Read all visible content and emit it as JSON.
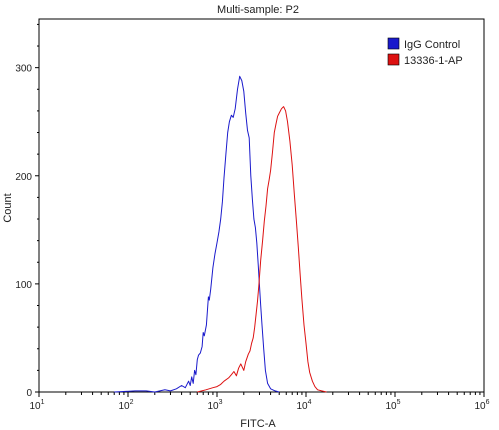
{
  "chart_data": {
    "type": "line",
    "title": "Multi-sample: P2",
    "xlabel": "FITC-A",
    "ylabel": "Count",
    "x_scale": "log",
    "xlim": [
      10,
      1000000
    ],
    "ylim": [
      0,
      345
    ],
    "y_ticks": [
      0,
      100,
      200,
      300
    ],
    "x_ticks": [
      {
        "value": 10,
        "base": "10",
        "exp": "1"
      },
      {
        "value": 100,
        "base": "10",
        "exp": "2"
      },
      {
        "value": 1000,
        "base": "10",
        "exp": "3"
      },
      {
        "value": 10000,
        "base": "10",
        "exp": "4"
      },
      {
        "value": 100000,
        "base": "10",
        "exp": "5"
      },
      {
        "value": 1000000,
        "base": "10",
        "exp": "6"
      }
    ],
    "legend_position": "top-right",
    "series": [
      {
        "name": "IgG Control",
        "color": "#1a1acc",
        "points": [
          [
            70,
            0
          ],
          [
            120,
            1
          ],
          [
            160,
            1
          ],
          [
            200,
            0
          ],
          [
            260,
            2
          ],
          [
            300,
            1
          ],
          [
            350,
            3
          ],
          [
            400,
            6
          ],
          [
            440,
            4
          ],
          [
            480,
            10
          ],
          [
            500,
            6
          ],
          [
            520,
            14
          ],
          [
            540,
            8
          ],
          [
            560,
            20
          ],
          [
            580,
            16
          ],
          [
            600,
            30
          ],
          [
            620,
            34
          ],
          [
            650,
            36
          ],
          [
            680,
            42
          ],
          [
            700,
            55
          ],
          [
            720,
            52
          ],
          [
            760,
            62
          ],
          [
            800,
            88
          ],
          [
            820,
            85
          ],
          [
            850,
            95
          ],
          [
            900,
            115
          ],
          [
            950,
            128
          ],
          [
            1000,
            138
          ],
          [
            1050,
            148
          ],
          [
            1100,
            160
          ],
          [
            1150,
            176
          ],
          [
            1200,
            198
          ],
          [
            1260,
            220
          ],
          [
            1320,
            240
          ],
          [
            1380,
            250
          ],
          [
            1450,
            256
          ],
          [
            1520,
            254
          ],
          [
            1600,
            262
          ],
          [
            1700,
            280
          ],
          [
            1800,
            292
          ],
          [
            1900,
            288
          ],
          [
            2000,
            278
          ],
          [
            2100,
            258
          ],
          [
            2200,
            242
          ],
          [
            2300,
            235
          ],
          [
            2400,
            200
          ],
          [
            2500,
            178
          ],
          [
            2600,
            160
          ],
          [
            2700,
            152
          ],
          [
            2800,
            138
          ],
          [
            2900,
            118
          ],
          [
            3000,
            98
          ],
          [
            3100,
            80
          ],
          [
            3200,
            62
          ],
          [
            3350,
            40
          ],
          [
            3500,
            20
          ],
          [
            3700,
            8
          ],
          [
            4000,
            3
          ],
          [
            4500,
            1
          ],
          [
            5000,
            0
          ]
        ]
      },
      {
        "name": "13336-1-AP",
        "color": "#dd1111",
        "points": [
          [
            600,
            0
          ],
          [
            750,
            2
          ],
          [
            900,
            4
          ],
          [
            1000,
            5
          ],
          [
            1100,
            7
          ],
          [
            1200,
            10
          ],
          [
            1350,
            13
          ],
          [
            1450,
            16
          ],
          [
            1550,
            19
          ],
          [
            1650,
            15
          ],
          [
            1750,
            22
          ],
          [
            1850,
            26
          ],
          [
            2000,
            20
          ],
          [
            2100,
            28
          ],
          [
            2250,
            35
          ],
          [
            2350,
            38
          ],
          [
            2450,
            45
          ],
          [
            2550,
            50
          ],
          [
            2650,
            60
          ],
          [
            2750,
            72
          ],
          [
            2850,
            84
          ],
          [
            2950,
            98
          ],
          [
            3100,
            122
          ],
          [
            3250,
            140
          ],
          [
            3400,
            158
          ],
          [
            3550,
            172
          ],
          [
            3700,
            188
          ],
          [
            3850,
            196
          ],
          [
            4000,
            205
          ],
          [
            4200,
            222
          ],
          [
            4400,
            240
          ],
          [
            4600,
            248
          ],
          [
            4800,
            255
          ],
          [
            5000,
            258
          ],
          [
            5300,
            262
          ],
          [
            5600,
            264
          ],
          [
            5900,
            260
          ],
          [
            6200,
            250
          ],
          [
            6600,
            232
          ],
          [
            7000,
            210
          ],
          [
            7400,
            182
          ],
          [
            7800,
            158
          ],
          [
            8200,
            134
          ],
          [
            8600,
            108
          ],
          [
            9000,
            86
          ],
          [
            9500,
            62
          ],
          [
            10000,
            45
          ],
          [
            10500,
            28
          ],
          [
            11000,
            18
          ],
          [
            11800,
            10
          ],
          [
            12600,
            5
          ],
          [
            13500,
            2
          ],
          [
            15000,
            1
          ],
          [
            17000,
            0
          ]
        ]
      }
    ]
  },
  "legend": [
    {
      "label": "IgG Control",
      "color": "#1a1acc"
    },
    {
      "label": "13336-1-AP",
      "color": "#dd1111"
    }
  ]
}
